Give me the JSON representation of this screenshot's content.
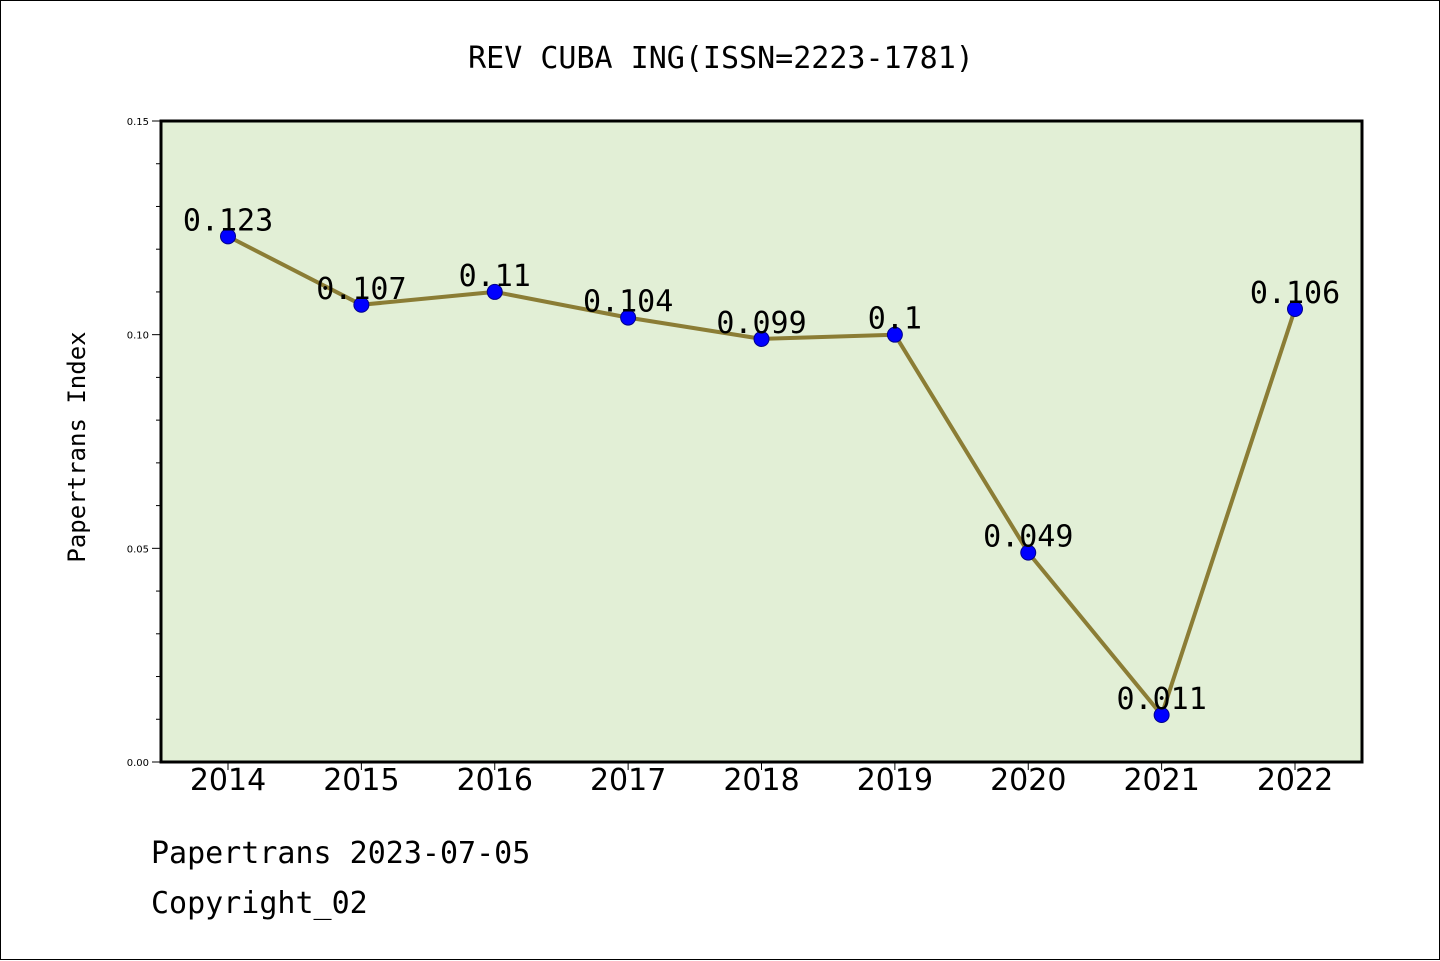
{
  "chart_data": {
    "type": "line",
    "title": "REV CUBA ING(ISSN=2223-1781)",
    "xlabel": "",
    "ylabel": "Papertrans Index",
    "categories": [
      "2014",
      "2015",
      "2016",
      "2017",
      "2018",
      "2019",
      "2020",
      "2021",
      "2022"
    ],
    "series": [
      {
        "values": [
          0.123,
          0.107,
          0.11,
          0.104,
          0.099,
          0.1,
          0.049,
          0.011,
          0.106
        ],
        "labels": [
          "0.123",
          "0.107",
          "0.11",
          "0.104",
          "0.099",
          "0.1",
          "0.049",
          "0.011",
          "0.106"
        ]
      }
    ],
    "ylim": [
      0,
      0.15
    ],
    "yticks": [
      "0.00",
      "0.05",
      "0.10",
      "0.15"
    ],
    "grid": false,
    "colors": {
      "plot_background": "#e2efd6",
      "line": "#8b7d35",
      "marker": "#0000ff"
    }
  },
  "footer": {
    "date_line": "Papertrans 2023-07-05",
    "copyright": "Copyright_02"
  }
}
